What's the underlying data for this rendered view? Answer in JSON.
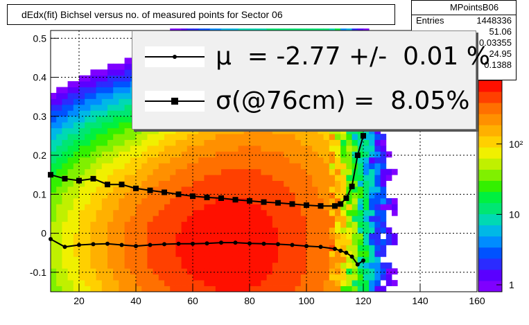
{
  "title": "dEdx(fit) Bichsel versus no. of measured points for Sector 06",
  "stats": {
    "name": "MPointsB06",
    "rows": [
      {
        "label": "Entries",
        "value": "1448336"
      },
      {
        "label": "",
        "value": "51.06"
      },
      {
        "label": "",
        "value": "0.03355"
      },
      {
        "label": "",
        "value": "24.95"
      },
      {
        "label": "",
        "value": "0.1388"
      }
    ]
  },
  "legend": {
    "mu": "μ  = -2.77 +/-  0.01 %",
    "sigma": "σ(@76cm) =  8.05%"
  },
  "chart_data": {
    "type": "heatmap",
    "title": "dEdx(fit) Bichsel versus no. of measured points for Sector 06",
    "xlim": [
      10,
      160
    ],
    "ylim": [
      -0.15,
      0.52
    ],
    "x_ticks": [
      20,
      40,
      60,
      80,
      100,
      120,
      140,
      160
    ],
    "y_ticks": [
      -0.1,
      0,
      0.1,
      0.2,
      0.3,
      0.4,
      0.5
    ],
    "x_tick_labels": [
      "20",
      "40",
      "60",
      "80",
      "100",
      "120",
      "140",
      "160"
    ],
    "y_tick_labels": [
      "-0.1",
      "0",
      "0.1",
      "0.2",
      "0.3",
      "0.4",
      "0.5"
    ],
    "colorbar": {
      "scale": "log",
      "range": [
        1,
        800
      ],
      "tick_labels": [
        "1",
        "10",
        "10²"
      ],
      "tick_values": [
        1,
        10,
        100
      ]
    },
    "grid": true,
    "density_peak": {
      "x": 72,
      "y": -0.03
    },
    "series": [
      {
        "name": "mu",
        "marker": "dot",
        "x": [
          10,
          15,
          20,
          25,
          30,
          35,
          40,
          45,
          50,
          55,
          60,
          65,
          70,
          75,
          80,
          85,
          90,
          95,
          100,
          105,
          110,
          112,
          114,
          116,
          118,
          120
        ],
        "y": [
          -0.015,
          -0.035,
          -0.03,
          -0.028,
          -0.027,
          -0.03,
          -0.033,
          -0.03,
          -0.028,
          -0.027,
          -0.027,
          -0.026,
          -0.024,
          -0.024,
          -0.026,
          -0.027,
          -0.028,
          -0.03,
          -0.033,
          -0.035,
          -0.04,
          -0.045,
          -0.05,
          -0.06,
          -0.08,
          -0.07
        ]
      },
      {
        "name": "sigma",
        "marker": "square",
        "x": [
          10,
          15,
          20,
          25,
          30,
          35,
          40,
          45,
          50,
          55,
          60,
          65,
          70,
          75,
          80,
          85,
          90,
          95,
          100,
          105,
          110,
          112,
          114,
          116,
          118,
          120
        ],
        "y": [
          0.15,
          0.14,
          0.135,
          0.14,
          0.125,
          0.125,
          0.115,
          0.11,
          0.105,
          0.1,
          0.095,
          0.092,
          0.09,
          0.086,
          0.083,
          0.08,
          0.078,
          0.075,
          0.072,
          0.07,
          0.07,
          0.075,
          0.09,
          0.12,
          0.2,
          0.25
        ]
      }
    ]
  }
}
